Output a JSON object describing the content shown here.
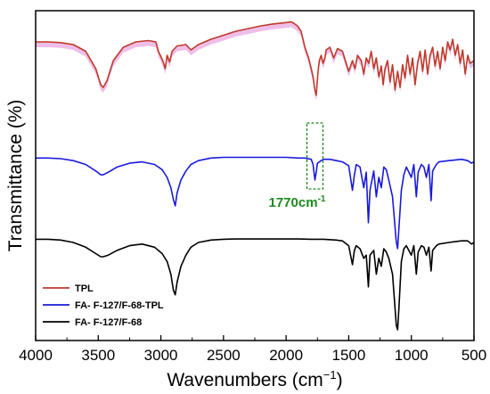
{
  "chart_data": {
    "type": "line",
    "xlabel": "Wavenumbers (cm",
    "xlabel_sup": "−1",
    "xlabel_close": ")",
    "ylabel": "Transmittance (%)",
    "xlim": [
      4000,
      500
    ],
    "x_ticks": [
      4000,
      3500,
      3000,
      2500,
      2000,
      1500,
      1000,
      500
    ],
    "y_ticks_shown": false,
    "annotation": {
      "text": "1770cm",
      "sup": "-1",
      "x": 1770,
      "color": "#1e8a1e",
      "box_color": "#1e8a1e"
    },
    "legend_position": "bottom-left",
    "series": [
      {
        "name": "TPL",
        "color": "#c0392b",
        "fill_color": "#e8a8e0",
        "points": [
          [
            4000,
            62
          ],
          [
            3900,
            62
          ],
          [
            3800,
            61.5
          ],
          [
            3700,
            60
          ],
          [
            3600,
            55
          ],
          [
            3520,
            42
          ],
          [
            3480,
            30
          ],
          [
            3460,
            28
          ],
          [
            3430,
            33
          ],
          [
            3380,
            48
          ],
          [
            3300,
            58
          ],
          [
            3200,
            62
          ],
          [
            3100,
            63
          ],
          [
            3040,
            62
          ],
          [
            3020,
            55
          ],
          [
            2985,
            48
          ],
          [
            2965,
            42
          ],
          [
            2950,
            52
          ],
          [
            2930,
            47
          ],
          [
            2910,
            55
          ],
          [
            2870,
            59
          ],
          [
            2800,
            60
          ],
          [
            2760,
            56
          ],
          [
            2700,
            60
          ],
          [
            2600,
            64
          ],
          [
            2500,
            67
          ],
          [
            2400,
            70
          ],
          [
            2300,
            72
          ],
          [
            2200,
            74
          ],
          [
            2100,
            75.5
          ],
          [
            2000,
            76.5
          ],
          [
            1960,
            77
          ],
          [
            1940,
            76
          ],
          [
            1910,
            74
          ],
          [
            1880,
            70
          ],
          [
            1850,
            58
          ],
          [
            1820,
            50
          ],
          [
            1800,
            42
          ],
          [
            1785,
            36
          ],
          [
            1770,
            26
          ],
          [
            1760,
            22
          ],
          [
            1745,
            40
          ],
          [
            1735,
            48
          ],
          [
            1720,
            52
          ],
          [
            1705,
            46
          ],
          [
            1690,
            50
          ],
          [
            1680,
            56
          ],
          [
            1650,
            58
          ],
          [
            1620,
            50
          ],
          [
            1590,
            57
          ],
          [
            1550,
            55
          ],
          [
            1500,
            40
          ],
          [
            1470,
            48
          ],
          [
            1450,
            42
          ],
          [
            1430,
            52
          ],
          [
            1400,
            48
          ],
          [
            1380,
            38
          ],
          [
            1360,
            50
          ],
          [
            1340,
            46
          ],
          [
            1320,
            55
          ],
          [
            1300,
            42
          ],
          [
            1280,
            50
          ],
          [
            1260,
            36
          ],
          [
            1240,
            44
          ],
          [
            1225,
            30
          ],
          [
            1210,
            42
          ],
          [
            1190,
            48
          ],
          [
            1170,
            32
          ],
          [
            1150,
            45
          ],
          [
            1130,
            26
          ],
          [
            1110,
            40
          ],
          [
            1090,
            28
          ],
          [
            1070,
            45
          ],
          [
            1050,
            35
          ],
          [
            1030,
            52
          ],
          [
            1010,
            38
          ],
          [
            990,
            50
          ],
          [
            970,
            30
          ],
          [
            950,
            46
          ],
          [
            930,
            55
          ],
          [
            910,
            40
          ],
          [
            890,
            56
          ],
          [
            870,
            38
          ],
          [
            850,
            52
          ],
          [
            830,
            58
          ],
          [
            810,
            44
          ],
          [
            790,
            55
          ],
          [
            770,
            42
          ],
          [
            750,
            58
          ],
          [
            730,
            48
          ],
          [
            710,
            62
          ],
          [
            690,
            56
          ],
          [
            670,
            64
          ],
          [
            650,
            52
          ],
          [
            630,
            60
          ],
          [
            610,
            46
          ],
          [
            590,
            56
          ],
          [
            570,
            38
          ],
          [
            550,
            52
          ],
          [
            530,
            46
          ],
          [
            500,
            48
          ]
        ]
      },
      {
        "name": "FA- F-127/F-68-TPL",
        "color": "#1a1adb",
        "points": [
          [
            4000,
            35
          ],
          [
            3900,
            35
          ],
          [
            3800,
            34.5
          ],
          [
            3700,
            33
          ],
          [
            3600,
            30
          ],
          [
            3520,
            25
          ],
          [
            3480,
            22
          ],
          [
            3460,
            22
          ],
          [
            3420,
            24
          ],
          [
            3350,
            28
          ],
          [
            3250,
            31
          ],
          [
            3150,
            32
          ],
          [
            3050,
            30
          ],
          [
            2990,
            26
          ],
          [
            2950,
            20
          ],
          [
            2920,
            12
          ],
          [
            2900,
            3
          ],
          [
            2885,
            -2
          ],
          [
            2870,
            8
          ],
          [
            2840,
            18
          ],
          [
            2800,
            25
          ],
          [
            2760,
            30
          ],
          [
            2700,
            33
          ],
          [
            2600,
            35
          ],
          [
            2500,
            35.5
          ],
          [
            2400,
            35.5
          ],
          [
            2300,
            35.5
          ],
          [
            2200,
            35.5
          ],
          [
            2100,
            35.5
          ],
          [
            2000,
            35.5
          ],
          [
            1900,
            35
          ],
          [
            1850,
            35
          ],
          [
            1800,
            34
          ],
          [
            1785,
            30
          ],
          [
            1770,
            18
          ],
          [
            1760,
            24
          ],
          [
            1750,
            31
          ],
          [
            1720,
            33
          ],
          [
            1700,
            34
          ],
          [
            1650,
            34
          ],
          [
            1600,
            33
          ],
          [
            1550,
            32
          ],
          [
            1500,
            29
          ],
          [
            1470,
            10
          ],
          [
            1455,
            22
          ],
          [
            1440,
            30
          ],
          [
            1410,
            28
          ],
          [
            1380,
            12
          ],
          [
            1360,
            24
          ],
          [
            1343,
            -15
          ],
          [
            1330,
            10
          ],
          [
            1300,
            25
          ],
          [
            1280,
            5
          ],
          [
            1260,
            20
          ],
          [
            1240,
            12
          ],
          [
            1220,
            28
          ],
          [
            1200,
            26
          ],
          [
            1180,
            18
          ],
          [
            1150,
            5
          ],
          [
            1120,
            -30
          ],
          [
            1110,
            -35
          ],
          [
            1100,
            -20
          ],
          [
            1080,
            10
          ],
          [
            1060,
            22
          ],
          [
            1040,
            28
          ],
          [
            1000,
            20
          ],
          [
            980,
            30
          ],
          [
            960,
            5
          ],
          [
            945,
            24
          ],
          [
            920,
            30
          ],
          [
            900,
            28
          ],
          [
            880,
            20
          ],
          [
            860,
            30
          ],
          [
            842,
            2
          ],
          [
            830,
            25
          ],
          [
            800,
            30
          ],
          [
            780,
            32
          ],
          [
            700,
            33
          ],
          [
            600,
            34
          ],
          [
            550,
            33
          ],
          [
            520,
            31
          ],
          [
            500,
            32
          ]
        ]
      },
      {
        "name": "FA- F-127/F-68",
        "color": "#000000",
        "points": [
          [
            4000,
            2
          ],
          [
            3900,
            2
          ],
          [
            3800,
            1.5
          ],
          [
            3700,
            0
          ],
          [
            3600,
            -3
          ],
          [
            3520,
            -7
          ],
          [
            3480,
            -9
          ],
          [
            3460,
            -9
          ],
          [
            3420,
            -8
          ],
          [
            3350,
            -5
          ],
          [
            3250,
            -2
          ],
          [
            3150,
            -1
          ],
          [
            3050,
            -3
          ],
          [
            2990,
            -7
          ],
          [
            2950,
            -12
          ],
          [
            2920,
            -20
          ],
          [
            2900,
            -30
          ],
          [
            2885,
            -33
          ],
          [
            2870,
            -25
          ],
          [
            2840,
            -15
          ],
          [
            2800,
            -8
          ],
          [
            2760,
            -3
          ],
          [
            2700,
            0
          ],
          [
            2600,
            1.5
          ],
          [
            2500,
            2
          ],
          [
            2400,
            2.2
          ],
          [
            2300,
            2.2
          ],
          [
            2200,
            2.2
          ],
          [
            2100,
            2.2
          ],
          [
            2000,
            2.2
          ],
          [
            1900,
            2.2
          ],
          [
            1800,
            2
          ],
          [
            1700,
            2
          ],
          [
            1600,
            1.5
          ],
          [
            1550,
            1
          ],
          [
            1500,
            -2
          ],
          [
            1470,
            -14
          ],
          [
            1455,
            -5
          ],
          [
            1440,
            -2
          ],
          [
            1410,
            -4
          ],
          [
            1380,
            -10
          ],
          [
            1360,
            -8
          ],
          [
            1343,
            -28
          ],
          [
            1330,
            -8
          ],
          [
            1300,
            -5
          ],
          [
            1280,
            -20
          ],
          [
            1260,
            -10
          ],
          [
            1240,
            -15
          ],
          [
            1220,
            -4
          ],
          [
            1200,
            -6
          ],
          [
            1180,
            -10
          ],
          [
            1150,
            -20
          ],
          [
            1120,
            -52
          ],
          [
            1110,
            -55
          ],
          [
            1100,
            -42
          ],
          [
            1080,
            -12
          ],
          [
            1060,
            -4
          ],
          [
            1040,
            -2
          ],
          [
            1000,
            -8
          ],
          [
            980,
            -2
          ],
          [
            960,
            -20
          ],
          [
            945,
            -6
          ],
          [
            920,
            -2
          ],
          [
            900,
            -3
          ],
          [
            880,
            -8
          ],
          [
            860,
            -3
          ],
          [
            842,
            -18
          ],
          [
            830,
            -5
          ],
          [
            800,
            -2
          ],
          [
            780,
            -1
          ],
          [
            700,
            0
          ],
          [
            600,
            1
          ],
          [
            550,
            1
          ],
          [
            520,
            -1
          ],
          [
            500,
            0
          ]
        ]
      }
    ]
  }
}
